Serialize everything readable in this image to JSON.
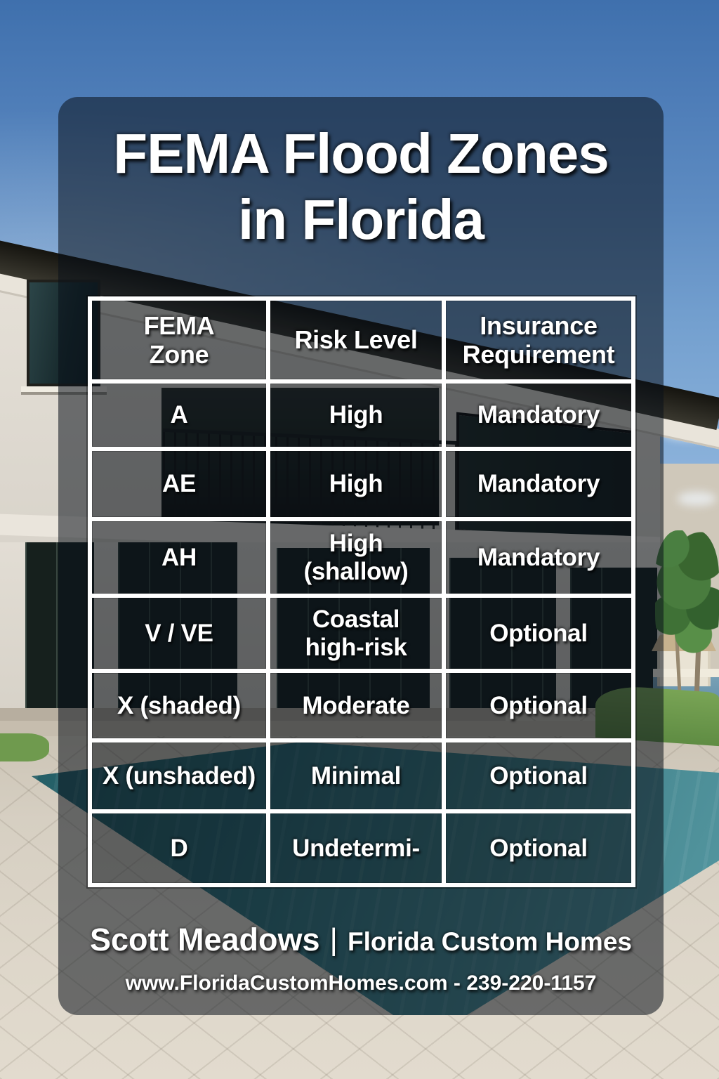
{
  "title": {
    "line1": "FEMA Flood Zones",
    "line2": "in Florida"
  },
  "table": {
    "headers": [
      "FEMA Zone",
      "Risk Level",
      "Insurance Requirement"
    ],
    "rows": [
      {
        "zone": "A",
        "risk": "High",
        "insurance": "Mandatory"
      },
      {
        "zone": "AE",
        "risk": "High",
        "insurance": "Mandatory"
      },
      {
        "zone": "AH",
        "risk": "High (shallow)",
        "insurance": "Mandatory"
      },
      {
        "zone": "V / VE",
        "risk": "Coastal high-risk",
        "insurance": "Optional"
      },
      {
        "zone": "X (shaded)",
        "risk": "Moderate",
        "insurance": "Optional"
      },
      {
        "zone": "X (unshaded)",
        "risk": "Minimal",
        "insurance": "Optional"
      },
      {
        "zone": "D",
        "risk": "Undetermi-",
        "insurance": "Optional"
      }
    ]
  },
  "footer": {
    "agent_name": "Scott Meadows",
    "separator": "|",
    "company": "Florida Custom Homes",
    "contact_line": "www.FloridaCustomHomes.com - 239-220-1157"
  },
  "colors": {
    "overlay_tint": "#0A101A",
    "table_border": "#FFFFFF",
    "text": "#FFFFFF",
    "sky_blue": "#5E8CC2",
    "pool_teal": "#2C6B71",
    "paver_beige": "#D6CFC2"
  }
}
